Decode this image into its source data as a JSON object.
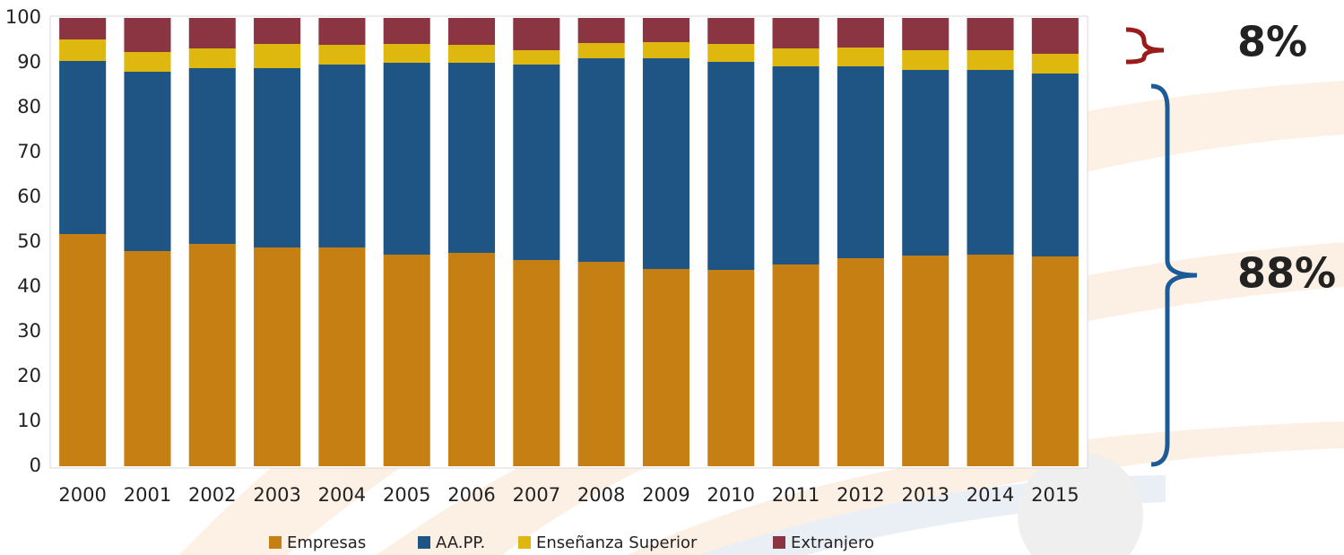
{
  "chart_data": {
    "type": "stacked-bar",
    "categories": [
      "2000",
      "2001",
      "2002",
      "2003",
      "2004",
      "2005",
      "2006",
      "2007",
      "2008",
      "2009",
      "2010",
      "2011",
      "2012",
      "2013",
      "2014",
      "2015"
    ],
    "series": [
      {
        "name": "Empresas",
        "color": "#c57f12",
        "values": [
          51.8,
          48.0,
          49.6,
          48.8,
          48.8,
          47.2,
          47.6,
          46.0,
          45.6,
          44.0,
          43.8,
          45.0,
          46.4,
          47.0,
          47.2,
          46.8
        ]
      },
      {
        "name": "AA.PP.",
        "color": "#1f5585",
        "values": [
          38.6,
          40.0,
          39.2,
          40.0,
          40.8,
          42.8,
          42.4,
          43.6,
          45.4,
          47.0,
          46.4,
          44.2,
          42.8,
          41.4,
          41.2,
          40.8
        ]
      },
      {
        "name": "Enseñanza Superior",
        "color": "#dfb80f",
        "values": [
          4.8,
          4.4,
          4.4,
          5.4,
          4.4,
          4.2,
          4.0,
          3.2,
          3.4,
          3.6,
          4.0,
          4.0,
          4.2,
          4.4,
          4.4,
          4.4
        ]
      },
      {
        "name": "Extranjero",
        "color": "#8b3442",
        "values": [
          4.8,
          7.6,
          6.8,
          5.8,
          6.0,
          5.8,
          6.0,
          7.2,
          5.6,
          5.4,
          5.8,
          6.8,
          6.6,
          7.2,
          7.2,
          8.0
        ]
      }
    ],
    "ylim": [
      0,
      100
    ],
    "yticks": [
      0,
      10,
      20,
      30,
      40,
      50,
      60,
      70,
      80,
      90,
      100
    ],
    "grid": false,
    "legend": "bottom",
    "annotations": [
      {
        "text": "8%",
        "color": "#9b1b1b"
      },
      {
        "text": "88%",
        "color": "#1d5a98"
      }
    ]
  }
}
